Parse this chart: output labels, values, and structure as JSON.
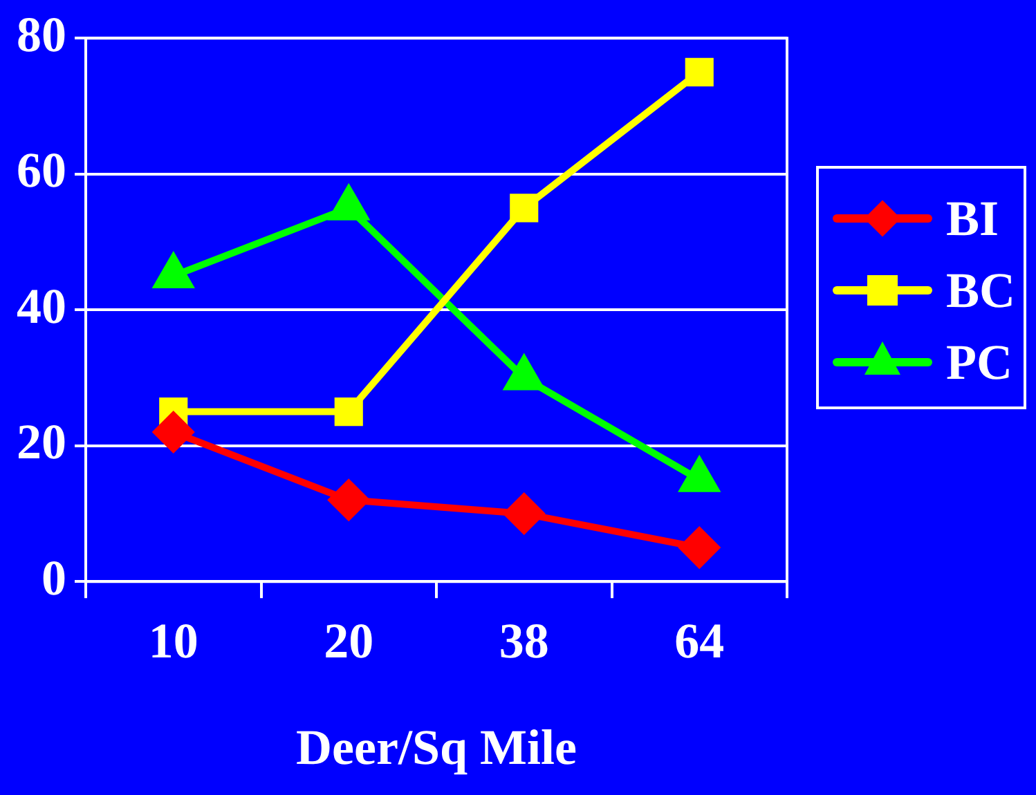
{
  "chart_data": {
    "type": "line",
    "xlabel": "Deer/Sq Mile",
    "categories": [
      "10",
      "20",
      "38",
      "64"
    ],
    "series": [
      {
        "name": "BI",
        "color": "#ff0000",
        "marker": "diamond",
        "values": [
          22,
          12,
          10,
          5
        ]
      },
      {
        "name": "BC",
        "color": "#ffff00",
        "marker": "square",
        "values": [
          25,
          25,
          55,
          75
        ]
      },
      {
        "name": "PC",
        "color": "#00ff00",
        "marker": "triangle",
        "values": [
          45,
          55,
          30,
          15
        ]
      }
    ],
    "ylim": [
      0,
      80
    ],
    "yticks": [
      0,
      20,
      40,
      60,
      80
    ],
    "grid": "y",
    "legend": "right",
    "line_style": "solid"
  }
}
